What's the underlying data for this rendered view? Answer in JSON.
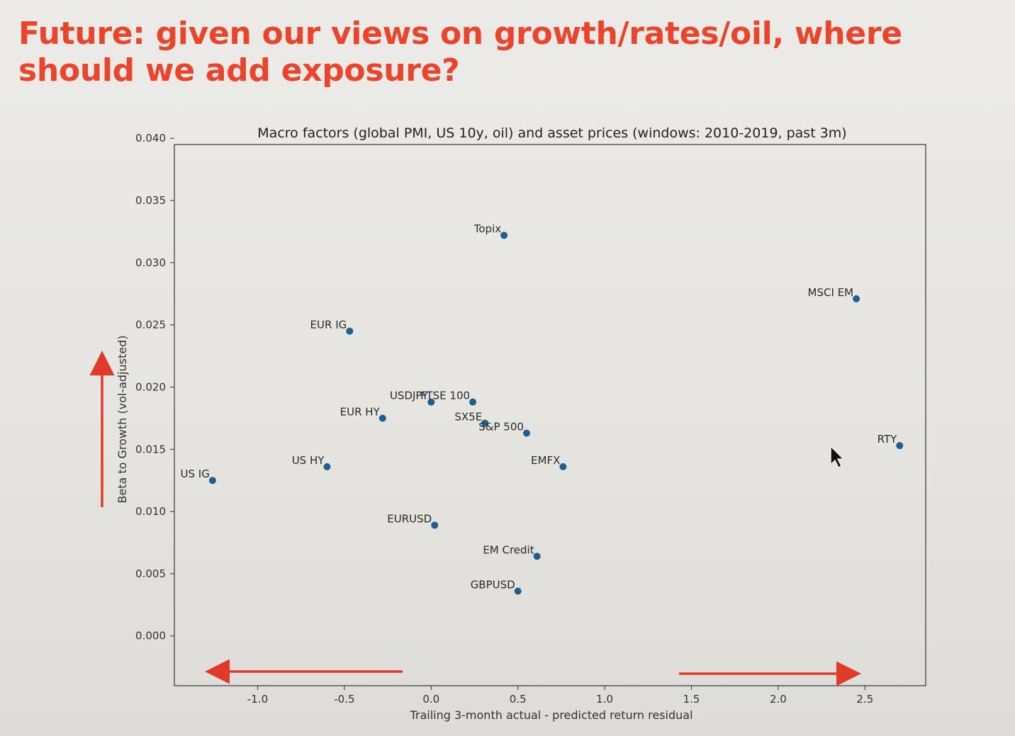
{
  "slide": {
    "title": "Future: given our views on growth/rates/oil, where should we add exposure?"
  },
  "colors": {
    "title": "#e8452c",
    "arrow": "#e03a2b",
    "point": "#1f5f8b"
  },
  "chart_data": {
    "type": "scatter",
    "title": "Macro factors (global PMI, US 10y, oil) and asset prices (windows: 2010-2019, past 3m)",
    "xlabel": "Trailing 3-month actual - predicted return residual",
    "ylabel": "Beta to Growth (vol-adjusted)",
    "xlim": [
      -1.48,
      2.85
    ],
    "ylim": [
      -0.004,
      0.0395
    ],
    "xticks": [
      -1.0,
      -0.5,
      0.0,
      0.5,
      1.0,
      1.5,
      2.0,
      2.5
    ],
    "xtick_labels": [
      "-1.0",
      "-0.5",
      "0.0",
      "0.5",
      "1.0",
      "1.5",
      "2.0",
      "2.5"
    ],
    "yticks": [
      0.0,
      0.005,
      0.01,
      0.015,
      0.02,
      0.025,
      0.03,
      0.035,
      0.04
    ],
    "ytick_labels": [
      "0.000",
      "0.005",
      "0.010",
      "0.015",
      "0.020",
      "0.025",
      "0.030",
      "0.035",
      "0.040"
    ],
    "grid": false,
    "points": [
      {
        "label": "Topix",
        "x": 0.42,
        "y": 0.0322
      },
      {
        "label": "MSCI EM",
        "x": 2.45,
        "y": 0.0271
      },
      {
        "label": "EUR IG",
        "x": -0.47,
        "y": 0.0245
      },
      {
        "label": "USDJPY",
        "x": 0.0,
        "y": 0.0188
      },
      {
        "label": "FTSE 100",
        "x": 0.24,
        "y": 0.0188
      },
      {
        "label": "EUR HY",
        "x": -0.28,
        "y": 0.0175
      },
      {
        "label": "SX5E",
        "x": 0.31,
        "y": 0.0171
      },
      {
        "label": "S&P 500",
        "x": 0.55,
        "y": 0.0163
      },
      {
        "label": "RTY",
        "x": 2.7,
        "y": 0.0153
      },
      {
        "label": "EMFX",
        "x": 0.76,
        "y": 0.0136
      },
      {
        "label": "US HY",
        "x": -0.6,
        "y": 0.0136
      },
      {
        "label": "US IG",
        "x": -1.26,
        "y": 0.0125
      },
      {
        "label": "EURUSD",
        "x": 0.02,
        "y": 0.0089
      },
      {
        "label": "EM Credit",
        "x": 0.61,
        "y": 0.0064
      },
      {
        "label": "GBPUSD",
        "x": 0.5,
        "y": 0.0036
      }
    ],
    "annotations": [
      {
        "type": "arrow",
        "direction": "up",
        "position": "left of y-axis"
      },
      {
        "type": "arrow",
        "direction": "left",
        "position": "bottom-left"
      },
      {
        "type": "arrow",
        "direction": "right",
        "position": "bottom-right"
      }
    ]
  }
}
